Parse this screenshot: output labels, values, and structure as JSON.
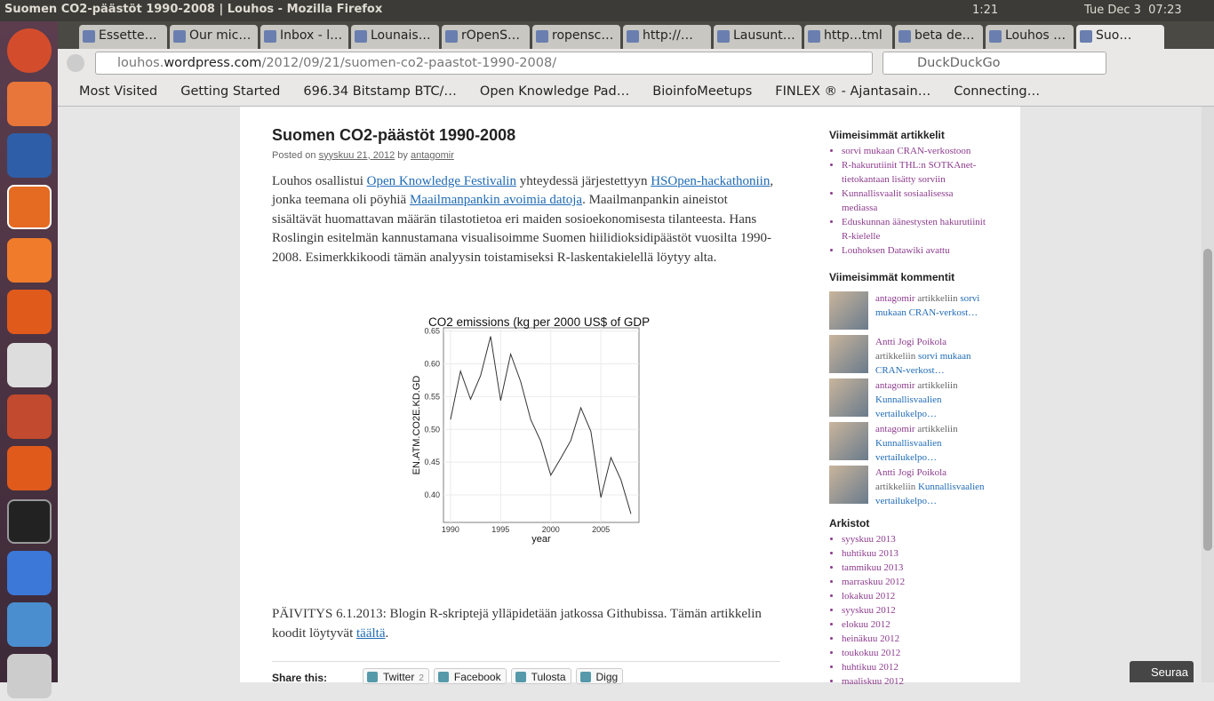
{
  "window": {
    "title": "Suomen CO2-päästöt 1990-2008 | Louhos - Mozilla Firefox",
    "battery": "1:21",
    "clock": "Tue Dec 3  07:23"
  },
  "tabs": [
    "Essette…",
    "Our mic…",
    "Inbox - l…",
    "Lounais…",
    "rOpenS…",
    "ropensc…",
    "http://…",
    "Lausunt…",
    "http…tml",
    "beta de…",
    "Louhos …",
    "Suo…"
  ],
  "url": {
    "pre": "louhos.",
    "host": "wordpress.com",
    "path": "/2012/09/21/suomen-co2-paastot-1990-2008/"
  },
  "search": "DuckDuckGo",
  "bookmarks": [
    "Most Visited",
    "Getting Started",
    "696.34 Bitstamp BTC/…",
    "Open Knowledge Pad…",
    "BioinfoMeetups",
    "FINLEX ® - Ajantasain…",
    "Connecting…"
  ],
  "article": {
    "title": "Suomen CO2-päästöt 1990-2008",
    "meta": [
      {
        "text": "Posted on "
      },
      {
        "text": "syyskuu 21, 2012",
        "link": true
      },
      {
        "text": " by "
      },
      {
        "text": "antagomir",
        "link": true
      }
    ],
    "body": [
      {
        "text": "Louhos osallistui "
      },
      {
        "text": "Open Knowledge Festivalin",
        "link": true
      },
      {
        "text": " yhteydessä järjestettyyn "
      },
      {
        "text": "HSOpen-hackathoniin",
        "link": true
      },
      {
        "text": ", jonka teemana oli pöyhiä "
      },
      {
        "text": "Maailmanpankin avoimia datoja",
        "link": true
      },
      {
        "text": ". Maailmanpankin aineistot sisältävät huomattavan määrän tilastotietoa eri maiden sosioekonomisesta tilanteesta. Hans Roslingin esitelmän kannustamana visualisoimme Suomen hiilidioksidipäästöt vuosilta 1990-2008. Esimerkkikoodi tämän analyysin toistamiseksi R-laskentakielellä löytyy alta."
      }
    ],
    "update": [
      {
        "text": "PÄIVITYS 6.1.2013: Blogin R-skriptejä ylläpidetään jatkossa Githubissa. Tämän artikkelin koodit löytyvät "
      },
      {
        "text": "täältä",
        "link": true
      },
      {
        "text": "."
      }
    ],
    "share_label": "Share this:",
    "share": [
      {
        "label": "Twitter",
        "count": "2"
      },
      {
        "label": "Facebook"
      },
      {
        "label": "Tulosta"
      },
      {
        "label": "Digg"
      }
    ]
  },
  "chart_data": {
    "type": "line",
    "title": "CO2 emissions (kg per 2000 US$ of GDP",
    "x_label": "year",
    "y_label": "EN.ATM.CO2E.KD.GD",
    "x": [
      1990,
      1991,
      1992,
      1993,
      1994,
      1995,
      1996,
      1997,
      1998,
      1999,
      2000,
      2001,
      2002,
      2003,
      2004,
      2005,
      2006,
      2007,
      2008
    ],
    "values": [
      0.515,
      0.589,
      0.546,
      0.582,
      0.642,
      0.544,
      0.615,
      0.573,
      0.515,
      0.482,
      0.43,
      0.456,
      0.483,
      0.533,
      0.497,
      0.396,
      0.457,
      0.423,
      0.371
    ],
    "color": "#333333",
    "xlim": [
      1989.3,
      2008.8
    ],
    "ylim": [
      0.358,
      0.655
    ],
    "xticks": [
      1990,
      1995,
      2000,
      2005
    ],
    "yticks": [
      {
        "value": 0.4,
        "label": "0.40"
      },
      0.45,
      {
        "value": 0.5,
        "label": "0.50"
      },
      0.55,
      {
        "value": 0.6,
        "label": "0.60"
      },
      0.65
    ],
    "grid": true
  },
  "sidebar": {
    "recent_posts_title": "Viimeisimmät artikkelit",
    "recent_posts": [
      "sorvi mukaan CRAN-verkostoon",
      "R-hakurutiinit THL:n SOTKAnet-tietokantaan lisätty sorviin",
      "Kunnallisvaalit sosiaalisessa mediassa",
      "Eduskunnan äänestysten hakurutiinit R-kielelle",
      "Louhoksen Datawiki avattu"
    ],
    "recent_comments_title": "Viimeisimmät kommentit",
    "recent_comments": [
      {
        "author": "antagomir",
        "word": "artikkeliin",
        "post": "sorvi mukaan CRAN-verkost…"
      },
      {
        "author": "Antti Jogi Poikola",
        "word": "artikkeliin",
        "post": "sorvi mukaan CRAN-verkost…"
      },
      {
        "author": "antagomir",
        "word": "artikkeliin",
        "post": "Kunnallisvaalien vertailukelpo…"
      },
      {
        "author": "antagomir",
        "word": "artikkeliin",
        "post": "Kunnallisvaalien vertailukelpo…"
      },
      {
        "author": "Antti Jogi Poikola",
        "word": "artikkeliin",
        "post": "Kunnallisvaalien vertailukelpo…"
      }
    ],
    "archives_title": "Arkistot",
    "archives": [
      "syyskuu 2013",
      "huhtikuu 2013",
      "tammikuu 2013",
      "marraskuu 2012",
      "lokakuu 2012",
      "syyskuu 2012",
      "elokuu 2012",
      "heinäkuu 2012",
      "toukokuu 2012",
      "huhtikuu 2012",
      "maaliskuu 2012"
    ]
  },
  "follow": "Seuraa"
}
